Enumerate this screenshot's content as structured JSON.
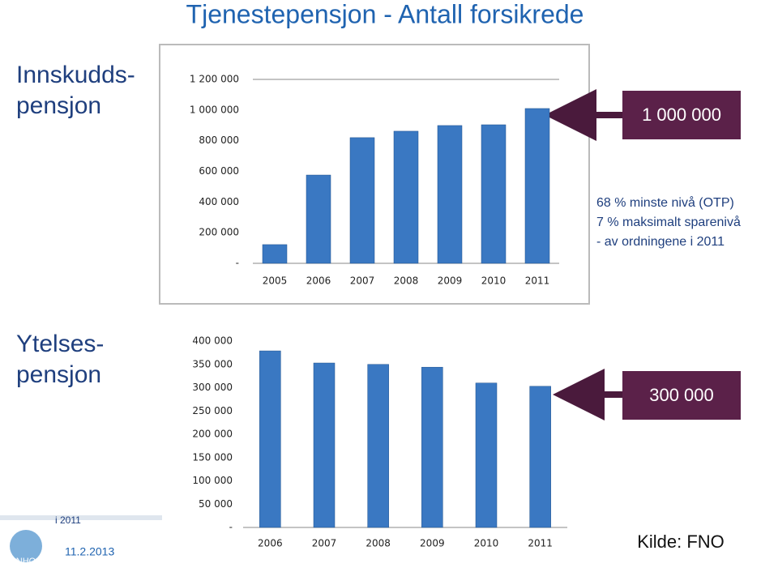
{
  "title": "Tjenestepensjon - Antall forsikrede",
  "section_top": [
    "Innskudds-",
    "pensjon"
  ],
  "section_bottom": [
    "Ytelses-",
    "pensjon"
  ],
  "callout_top": "1 000 000",
  "callout_bottom": "300 000",
  "notes": [
    "68 % minste nivå (OTP)",
    "7 % maksimalt sparenivå",
    "- av ordningene i 2011"
  ],
  "footer": {
    "left_note": "i 2011",
    "date": "11.2.2013",
    "source": "Kilde: FNO",
    "logo": "NHO"
  },
  "chart_data": [
    {
      "type": "bar",
      "categories": [
        "2005",
        "2006",
        "2007",
        "2008",
        "2009",
        "2010",
        "2011"
      ],
      "values": [
        122000,
        576000,
        820000,
        862000,
        899000,
        904000,
        1010000
      ],
      "color": "#3a78c2",
      "ylim": [
        0,
        1200000
      ],
      "yticks": [
        {
          "value": 0,
          "label": "-"
        },
        {
          "value": 200000,
          "label": "200 000"
        },
        {
          "value": 400000,
          "label": "400 000"
        },
        {
          "value": 600000,
          "label": "600 000"
        },
        {
          "value": 800000,
          "label": "800 000"
        },
        {
          "value": 1000000,
          "label": "1 000 000"
        },
        {
          "value": 1200000,
          "label": "1 200 000"
        }
      ],
      "grid": false
    },
    {
      "type": "bar",
      "categories": [
        "2006",
        "2007",
        "2008",
        "2009",
        "2010",
        "2011"
      ],
      "values": [
        379000,
        353000,
        350000,
        344000,
        310000,
        303000
      ],
      "color": "#3a78c2",
      "ylim": [
        0,
        400000
      ],
      "yticks": [
        {
          "value": 0,
          "label": "-"
        },
        {
          "value": 50000,
          "label": "50 000"
        },
        {
          "value": 100000,
          "label": "100 000"
        },
        {
          "value": 150000,
          "label": "150 000"
        },
        {
          "value": 200000,
          "label": "200 000"
        },
        {
          "value": 250000,
          "label": "250 000"
        },
        {
          "value": 300000,
          "label": "300 000"
        },
        {
          "value": 350000,
          "label": "350 000"
        },
        {
          "value": 400000,
          "label": "400 000"
        }
      ],
      "grid": false
    }
  ]
}
